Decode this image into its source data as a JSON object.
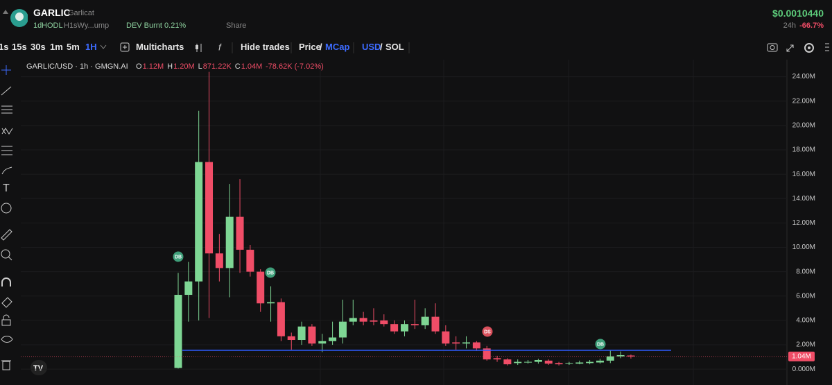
{
  "header": {
    "name": "GARLIC",
    "ticker": "Garlicat",
    "age": "1d",
    "hodl": "HODL",
    "address": "H1sWy...ump",
    "dev": "DEV Burnt 0.21%",
    "share": "Share",
    "price": "$0.0010440",
    "change_period": "24h",
    "change": "-66.7%"
  },
  "toolbar": {
    "intervals": [
      "1s",
      "15s",
      "30s",
      "1m",
      "5m",
      "1H"
    ],
    "multicharts": "Multicharts",
    "hide_trades": "Hide trades",
    "price": "Price",
    "sep": "/",
    "mcap": "MCap",
    "usd": "USD",
    "sep2": "/",
    "sol": "SOL"
  },
  "chart_data": {
    "type": "candlestick",
    "legend": {
      "symbol": "GARLIC/USD · 1h · GMGN.AI",
      "ohlc": [
        {
          "key": "O",
          "value": "1.12M"
        },
        {
          "key": "H",
          "value": "1.20M"
        },
        {
          "key": "L",
          "value": "871.22K"
        },
        {
          "key": "C",
          "value": "1.04M"
        }
      ],
      "change": "-78.62K (-7.02%)"
    },
    "series": {
      "open": [
        100000,
        6100000,
        7200000,
        17000000,
        9500000,
        8300000,
        12500000,
        9800000,
        8000000,
        5400000,
        5500000,
        2700000,
        2400000,
        3500000,
        2100000,
        2300000,
        2600000,
        3900000,
        4200000,
        4000000,
        4000000,
        3700000,
        3100000,
        3700000,
        3600000,
        4300000,
        3100000,
        2200000,
        2100000,
        2200000,
        1700000,
        900000,
        800000,
        500000,
        550000,
        600000,
        700000,
        500000,
        450000,
        450000,
        500000,
        550000,
        700000,
        1050000,
        1120000
      ],
      "high": [
        7900000,
        8800000,
        21200000,
        24400000,
        11100000,
        15200000,
        15600000,
        10200000,
        8200000,
        6800000,
        5800000,
        3000000,
        3900000,
        3700000,
        2900000,
        3900000,
        5700000,
        5700000,
        4700000,
        5000000,
        4500000,
        4000000,
        4000000,
        5700000,
        5000000,
        5400000,
        3600000,
        2700000,
        2700000,
        2300000,
        1900000,
        1100000,
        900000,
        800000,
        750000,
        850000,
        800000,
        600000,
        600000,
        700000,
        750000,
        850000,
        1550000,
        1450000,
        1200000
      ],
      "low": [
        50000,
        3900000,
        4000000,
        4200000,
        7200000,
        5900000,
        7900000,
        7600000,
        4700000,
        3900000,
        2300000,
        1600000,
        2000000,
        1900000,
        1400000,
        2000000,
        2100000,
        3600000,
        3600000,
        3600000,
        3500000,
        2900000,
        2700000,
        3300000,
        3300000,
        2900000,
        1900000,
        1600000,
        1700000,
        1500000,
        700000,
        600000,
        300000,
        350000,
        450000,
        450000,
        350000,
        300000,
        350000,
        400000,
        400000,
        450000,
        500000,
        900000,
        871220
      ],
      "close": [
        6100000,
        7200000,
        17000000,
        9500000,
        8300000,
        12500000,
        9800000,
        8000000,
        5400000,
        5500000,
        2700000,
        2400000,
        3500000,
        2100000,
        2300000,
        2600000,
        3900000,
        4200000,
        3900000,
        3900000,
        3700000,
        3100000,
        3700000,
        3600000,
        4300000,
        3100000,
        2100000,
        2100000,
        2200000,
        1700000,
        800000,
        800000,
        400000,
        600000,
        600000,
        750000,
        450000,
        400000,
        500000,
        550000,
        600000,
        700000,
        1050000,
        1150000,
        1040000
      ]
    },
    "colors": {
      "up": "#7ed694",
      "down": "#f04d67"
    },
    "ylim": [
      -1300000,
      25400000
    ],
    "yticks": [
      {
        "value": 0,
        "label": "0.000M"
      },
      {
        "value": 2000000,
        "label": "2.00M"
      },
      {
        "value": 4000000,
        "label": "4.00M"
      },
      {
        "value": 6000000,
        "label": "6.00M"
      },
      {
        "value": 8000000,
        "label": "8.00M"
      },
      {
        "value": 10000000,
        "label": "10.00M"
      },
      {
        "value": 12000000,
        "label": "12.00M"
      },
      {
        "value": 14000000,
        "label": "14.00M"
      },
      {
        "value": 16000000,
        "label": "16.00M"
      },
      {
        "value": 18000000,
        "label": "18.00M"
      },
      {
        "value": 20000000,
        "label": "20.00M"
      },
      {
        "value": 22000000,
        "label": "22.00M"
      },
      {
        "value": 24000000,
        "label": "24.00M"
      }
    ],
    "grid": true,
    "last_price": {
      "value": 1040000,
      "label": "1.04M"
    },
    "support_line": {
      "value": 1550000,
      "color": "#2f5cff"
    },
    "markers": [
      {
        "label": "DB",
        "color": "#3f9f7a"
      },
      {
        "label": "DB",
        "color": "#3f9f7a"
      },
      {
        "label": "DS",
        "color": "#d9505c"
      },
      {
        "label": "DB",
        "color": "#3f9f7a"
      }
    ]
  }
}
